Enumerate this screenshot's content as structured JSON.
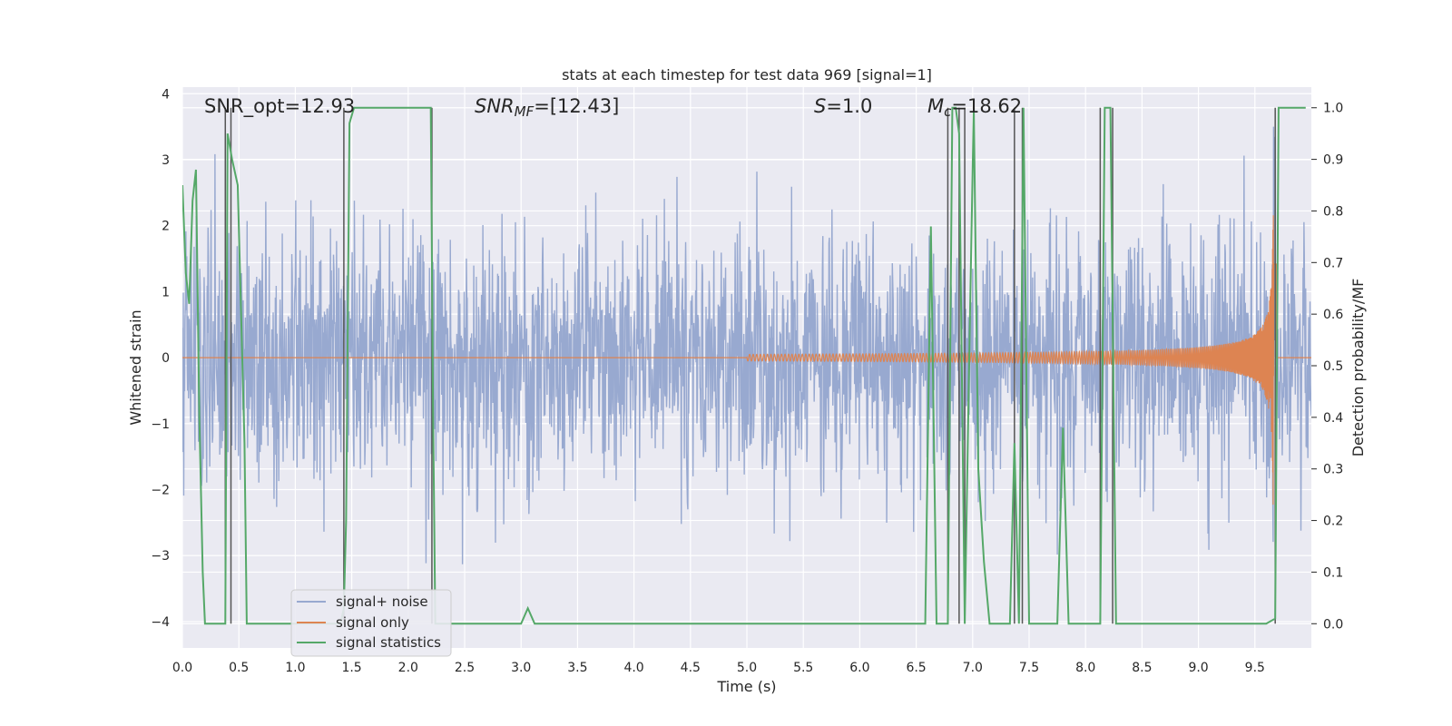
{
  "chart_data": {
    "type": "line",
    "title": "stats at each timestep for test data 969 [signal=1]",
    "xlabel": "Time (s)",
    "ylabel_left": "Whitened strain",
    "ylabel_right": "Detection probability/MF",
    "xlim": [
      0.0,
      10.0
    ],
    "ylim_left": [
      -4.4,
      4.1
    ],
    "ylim_right": [
      -0.047,
      1.04
    ],
    "x_ticks": [
      "0.0",
      "0.5",
      "1.0",
      "1.5",
      "2.0",
      "2.5",
      "3.0",
      "3.5",
      "4.0",
      "4.5",
      "5.0",
      "5.5",
      "6.0",
      "6.5",
      "7.0",
      "7.5",
      "8.0",
      "8.5",
      "9.0",
      "9.5"
    ],
    "y_ticks_left": [
      "4",
      "3",
      "2",
      "1",
      "0",
      "−1",
      "−2",
      "−3",
      "−4"
    ],
    "y_ticks_right": [
      "1.0",
      "0.9",
      "0.8",
      "0.7",
      "0.6",
      "0.5",
      "0.4",
      "0.3",
      "0.2",
      "0.1",
      "0.0"
    ],
    "grid": true,
    "legend_position": "lower-left",
    "annotations": {
      "snr_opt": "SNR_opt=12.93",
      "snr_mf_symbol": "SNR",
      "snr_mf_subscript": "MF",
      "snr_mf_value": "=[12.43]",
      "s_symbol": "S",
      "s_value": "=1.0",
      "mc_symbol": "M",
      "mc_subscript": "c",
      "mc_value": "=18.62"
    },
    "series": [
      {
        "name": "signal+ noise",
        "color": "#98a9d0",
        "description_axis": "left",
        "noise_sigma": 0.95,
        "peak_abs_approx": 3.8
      },
      {
        "name": "signal only",
        "color": "#dd8452",
        "description_axis": "left",
        "chirp_start": 5.0,
        "chirp_merger": 9.67,
        "peak_amplitude": 2.6
      },
      {
        "name": "signal statistics",
        "color": "#55a868",
        "description_axis": "right",
        "x": [
          0.0,
          0.03,
          0.06,
          0.09,
          0.12,
          0.15,
          0.18,
          0.2,
          0.24,
          0.3,
          0.36,
          0.38,
          0.4,
          0.44,
          0.49,
          0.55,
          0.57,
          1.0,
          1.4,
          1.43,
          1.45,
          1.48,
          1.52,
          1.6,
          2.0,
          2.2,
          2.22,
          2.24,
          3.0,
          3.06,
          3.12,
          4.0,
          5.0,
          6.0,
          6.58,
          6.63,
          6.68,
          6.73,
          6.78,
          6.82,
          6.85,
          6.88,
          6.93,
          6.97,
          7.01,
          7.05,
          7.1,
          7.15,
          7.2,
          7.33,
          7.37,
          7.41,
          7.45,
          7.5,
          7.6,
          7.75,
          7.8,
          7.85,
          7.95,
          8.1,
          8.13,
          8.17,
          8.22,
          8.27,
          8.3,
          8.6,
          9.0,
          9.3,
          9.6,
          9.68,
          9.71,
          9.74,
          9.8,
          9.9,
          9.95
        ],
        "y": [
          0.85,
          0.68,
          0.62,
          0.82,
          0.88,
          0.4,
          0.1,
          0.0,
          0.0,
          0.0,
          0.0,
          0.0,
          0.95,
          0.9,
          0.85,
          0.35,
          0.0,
          0.0,
          0.0,
          0.03,
          0.2,
          0.97,
          1.0,
          1.0,
          1.0,
          1.0,
          0.42,
          0.0,
          0.0,
          0.03,
          0.0,
          0.0,
          0.0,
          0.0,
          0.0,
          0.77,
          0.0,
          0.0,
          0.0,
          1.0,
          1.0,
          0.95,
          0.0,
          0.52,
          1.0,
          0.3,
          0.12,
          0.0,
          0.0,
          0.0,
          0.35,
          0.0,
          1.0,
          0.0,
          0.0,
          0.0,
          0.38,
          0.0,
          0.0,
          0.0,
          0.0,
          1.0,
          1.0,
          0.0,
          0.0,
          0.0,
          0.0,
          0.0,
          0.0,
          0.01,
          1.0,
          1.0,
          1.0,
          1.0,
          1.0
        ]
      }
    ],
    "vertical_markers_x": [
      0.38,
      0.43,
      1.43,
      2.21,
      6.78,
      6.88,
      6.93,
      7.37,
      7.44,
      8.13,
      8.24,
      9.68
    ],
    "marker_color": "#555555"
  }
}
